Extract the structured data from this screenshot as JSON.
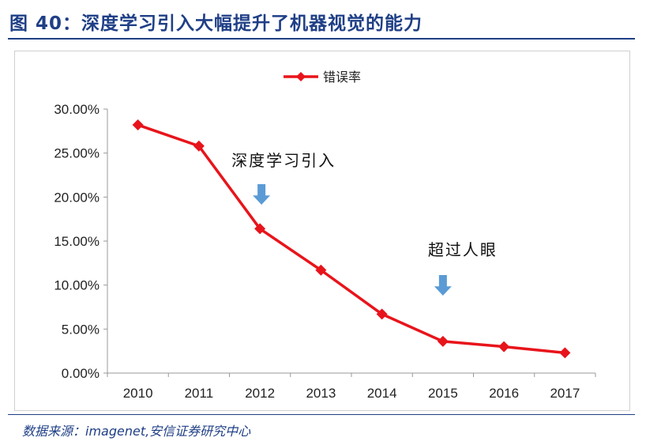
{
  "header": {
    "title": "图 40：深度学习引入大幅提升了机器视觉的能力"
  },
  "source": {
    "text": "数据来源：imagenet,安信证券研究中心"
  },
  "colors": {
    "title": "#1f3f86",
    "series": "#e8141b",
    "arrow": "#5b9bd5",
    "axis_text": "#222222"
  },
  "chart_data": {
    "type": "line",
    "x": [
      "2010",
      "2011",
      "2012",
      "2013",
      "2014",
      "2015",
      "2016",
      "2017"
    ],
    "series": [
      {
        "name": "错误率",
        "values": [
          0.282,
          0.258,
          0.164,
          0.117,
          0.067,
          0.036,
          0.03,
          0.023
        ]
      }
    ],
    "yticks": [
      "30.00%",
      "25.00%",
      "20.00%",
      "15.00%",
      "10.00%",
      "5.00%",
      "0.00%"
    ],
    "ylim": [
      0,
      0.3
    ],
    "legend": "top-center",
    "grid": false,
    "annotations": [
      {
        "text": "深度学习引入",
        "x_index": 2,
        "arrow_icon": "down-arrow-icon"
      },
      {
        "text": "超过人眼",
        "x_index": 5,
        "arrow_icon": "down-arrow-icon"
      }
    ]
  }
}
